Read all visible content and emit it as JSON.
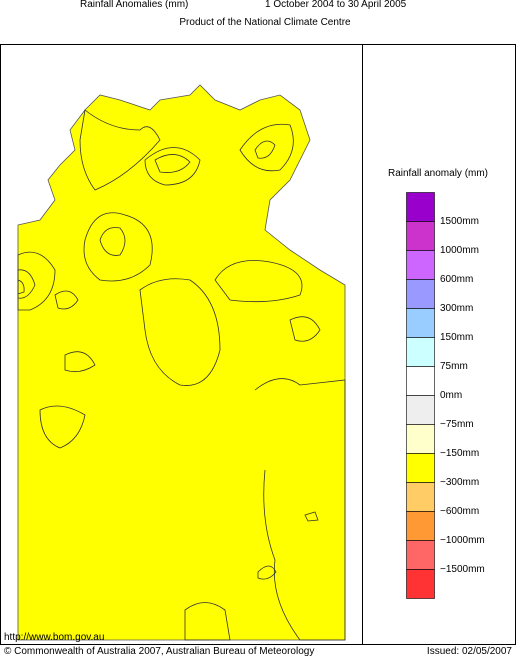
{
  "header": {
    "title": "Rainfall Anomalies (mm)",
    "period": "1 October 2004 to 30 April 2005",
    "subtitle": "Product of the National Climate Centre"
  },
  "legend": {
    "title": "Rainfall anomaly (mm)",
    "colors": [
      "#9900cc",
      "#cc33cc",
      "#cc66ff",
      "#9999ff",
      "#99ccff",
      "#ccffff",
      "#ffffff",
      "#eeeeee",
      "#ffffcc",
      "#ffff00",
      "#ffcc66",
      "#ff9933",
      "#ff6666",
      "#ff3333"
    ],
    "labels": [
      "1500mm",
      "1000mm",
      "600mm",
      "300mm",
      "150mm",
      "75mm",
      "0mm",
      "−75mm",
      "−150mm",
      "−300mm",
      "−600mm",
      "−1000mm",
      "−1500mm"
    ]
  },
  "footer": {
    "url": "http://www.bom.gov.au",
    "copyright": "© Commonwealth of Australia 2007, Australian Bureau of Meteorology",
    "issued": "Issued: 02/05/2007"
  }
}
